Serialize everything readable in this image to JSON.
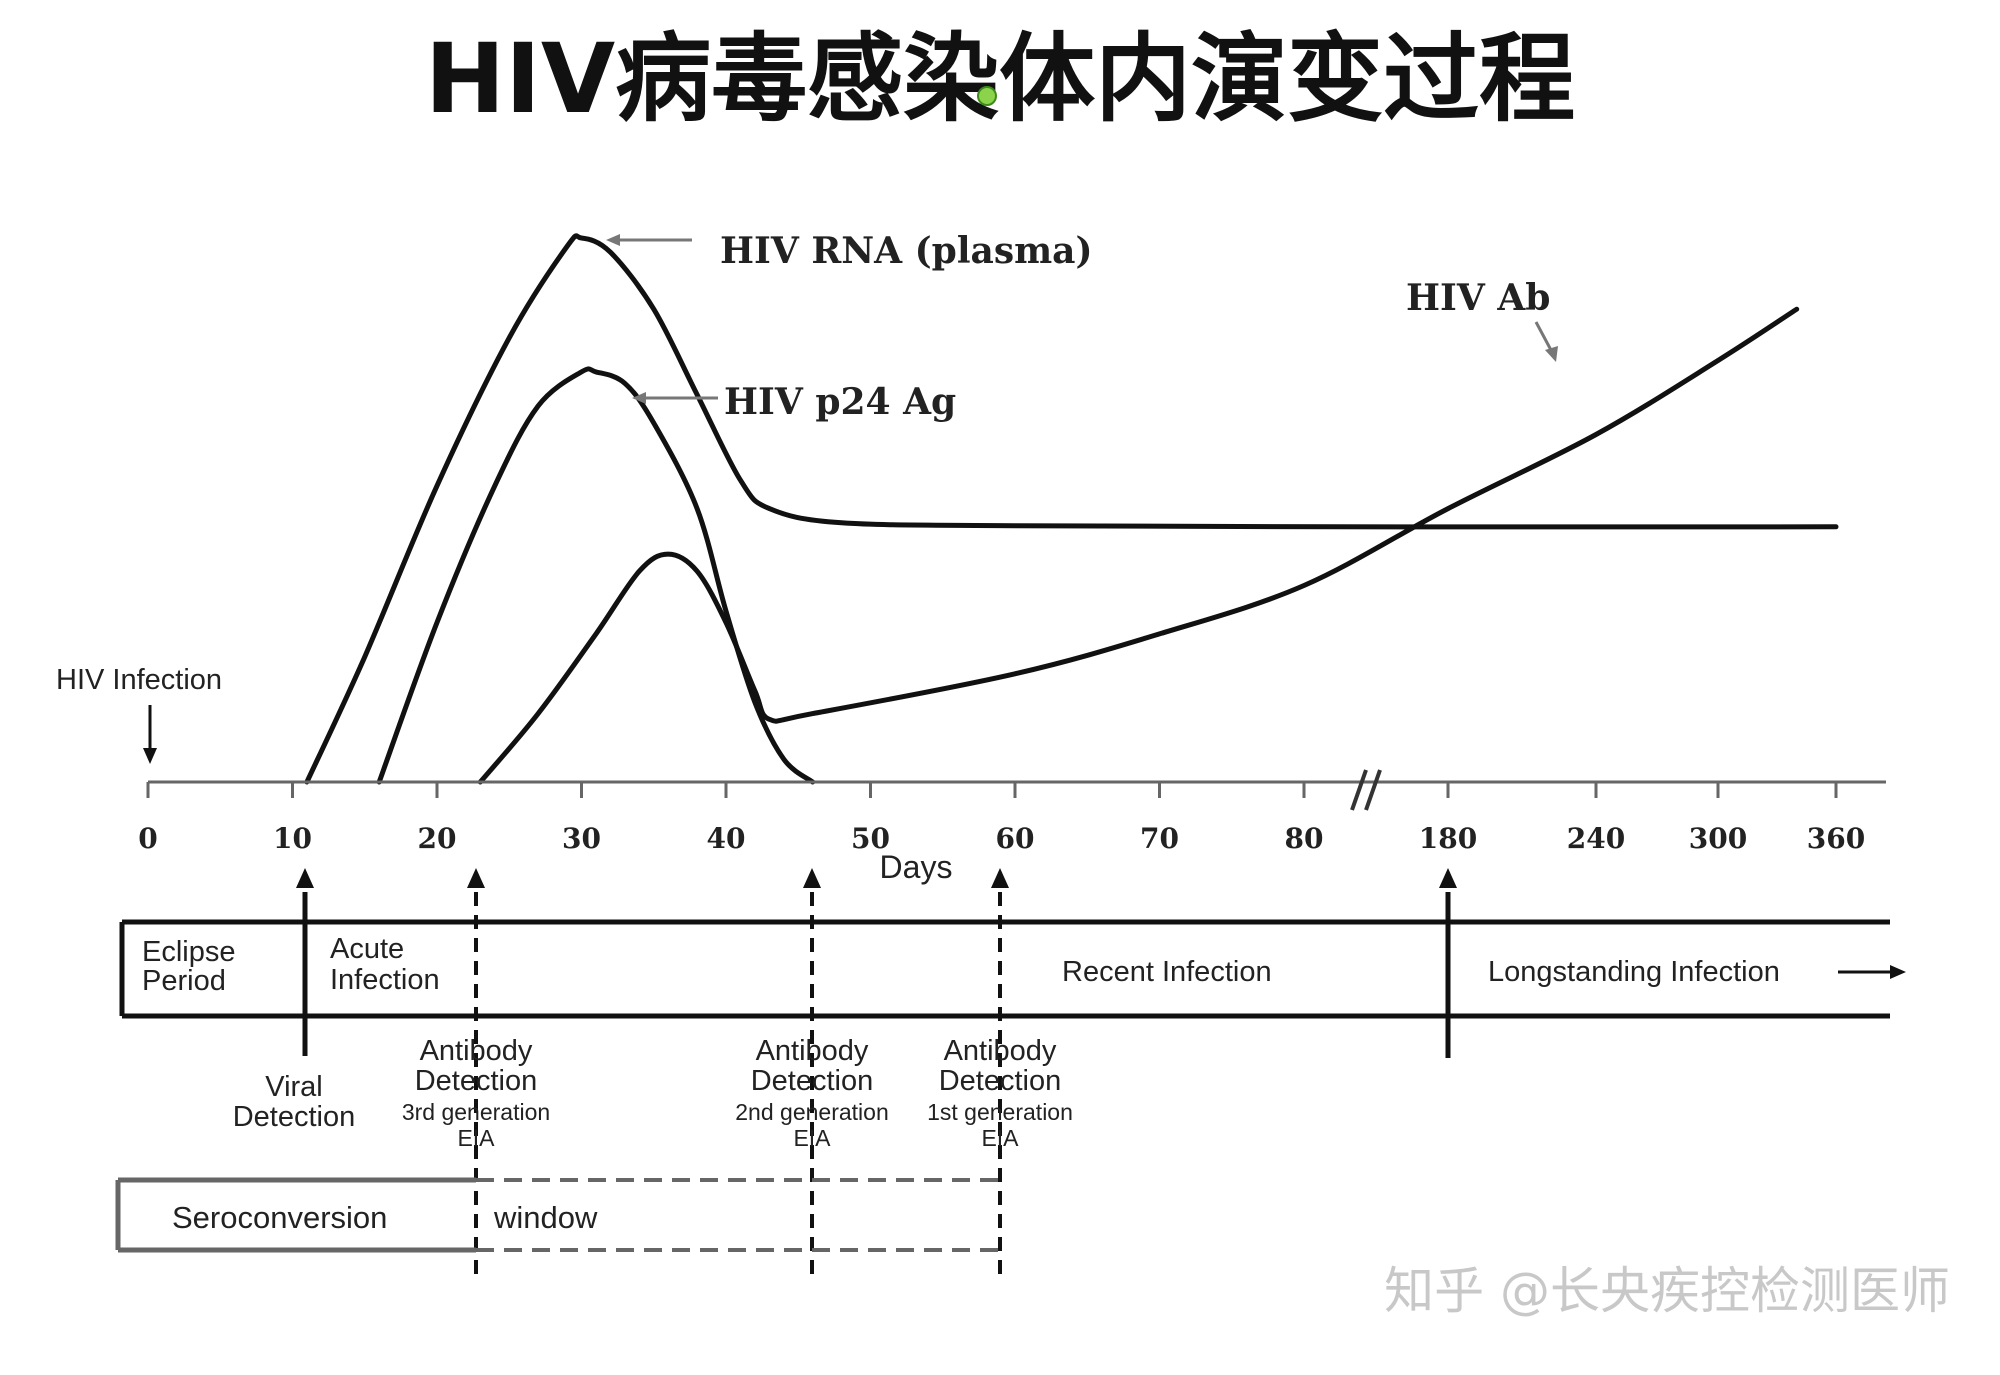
{
  "title": "HIV病毒感染体内演变过程",
  "watermark": "知乎 @长央疾控检测医师",
  "chart_data": {
    "type": "line",
    "xlabel": "Days",
    "x_ticks": [
      "0",
      "10",
      "20",
      "30",
      "40",
      "50",
      "60",
      "70",
      "80",
      "180",
      "240",
      "300",
      "360"
    ],
    "axis_break_between": [
      "80",
      "180"
    ],
    "annotations": {
      "infection": "HIV Infection"
    },
    "series": [
      {
        "name": "HIV RNA (plasma)",
        "points": [
          [
            11,
            0
          ],
          [
            15,
            0.22
          ],
          [
            20,
            0.52
          ],
          [
            25,
            0.78
          ],
          [
            29,
            0.94
          ],
          [
            30,
            0.955
          ],
          [
            32,
            0.93
          ],
          [
            35,
            0.83
          ],
          [
            38,
            0.68
          ],
          [
            41,
            0.53
          ],
          [
            43,
            0.48
          ],
          [
            48,
            0.455
          ],
          [
            60,
            0.45
          ],
          [
            100,
            0.448
          ],
          [
            360,
            0.448
          ]
        ]
      },
      {
        "name": "HIV p24 Ag",
        "points": [
          [
            16,
            0
          ],
          [
            20,
            0.28
          ],
          [
            24,
            0.52
          ],
          [
            27,
            0.66
          ],
          [
            30,
            0.72
          ],
          [
            31,
            0.72
          ],
          [
            33,
            0.7
          ],
          [
            35,
            0.63
          ],
          [
            38,
            0.48
          ],
          [
            40,
            0.3
          ],
          [
            42,
            0.14
          ],
          [
            44,
            0.04
          ],
          [
            46,
            0.0
          ]
        ]
      },
      {
        "name": "HIV Ab",
        "points": [
          [
            23,
            0
          ],
          [
            27,
            0.12
          ],
          [
            31,
            0.26
          ],
          [
            34,
            0.37
          ],
          [
            36,
            0.4
          ],
          [
            38,
            0.37
          ],
          [
            40,
            0.28
          ],
          [
            42,
            0.16
          ],
          [
            43,
            0.11
          ],
          [
            46,
            0.12
          ],
          [
            60,
            0.19
          ],
          [
            70,
            0.26
          ],
          [
            80,
            0.345
          ],
          [
            180,
            0.48
          ],
          [
            240,
            0.61
          ],
          [
            300,
            0.74
          ],
          [
            340,
            0.83
          ]
        ]
      }
    ],
    "stages_bar": [
      "Eclipse Period",
      "Acute Infection",
      "Recent Infection",
      "Longstanding Infection"
    ],
    "markers": [
      {
        "day": 11,
        "style": "solid",
        "label": [
          "Viral",
          "Detection"
        ]
      },
      {
        "day": 23,
        "style": "dashed",
        "label": [
          "Antibody",
          "Detection",
          "3rd generation",
          "EIA"
        ]
      },
      {
        "day": 46,
        "style": "dashed",
        "label": [
          "Antibody",
          "Detection",
          "2nd generation",
          "EIA"
        ]
      },
      {
        "day": 59,
        "style": "dashed",
        "label": [
          "Antibody",
          "Detection",
          "1st generation",
          "EIA"
        ]
      },
      {
        "day": 180,
        "style": "solid",
        "label": []
      }
    ],
    "window_bar": [
      "Seroconversion",
      "window"
    ]
  }
}
